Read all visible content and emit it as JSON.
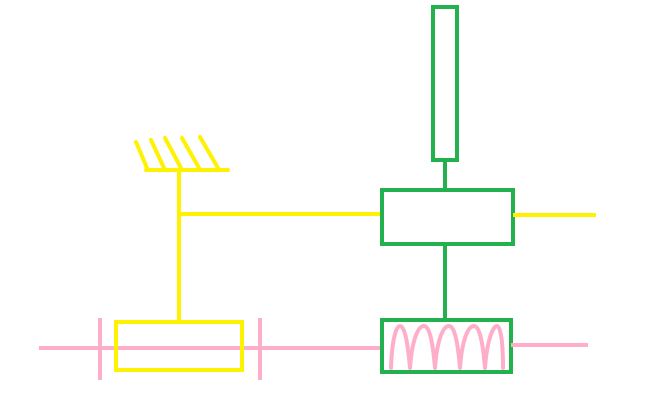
{
  "diagram": {
    "components": [
      {
        "name": "ground",
        "kind": "fixed support (hatched)"
      },
      {
        "name": "yellow-link",
        "kind": "vertical rod connecting ground, slider block and upper block"
      },
      {
        "name": "slider-block",
        "kind": "yellow rectangle on pink guide rail"
      },
      {
        "name": "pink-guide-rail",
        "kind": "horizontal rail with two stops"
      },
      {
        "name": "upper-block",
        "kind": "green rectangle"
      },
      {
        "name": "vertical-rod",
        "kind": "green tall rectangle"
      },
      {
        "name": "spring-box",
        "kind": "green rectangle with pink spring coil"
      }
    ],
    "colors": {
      "yellow": "#FFF200",
      "green": "#22B14C",
      "pink": "#FFAEC9",
      "background": "#FFFFFF"
    }
  }
}
